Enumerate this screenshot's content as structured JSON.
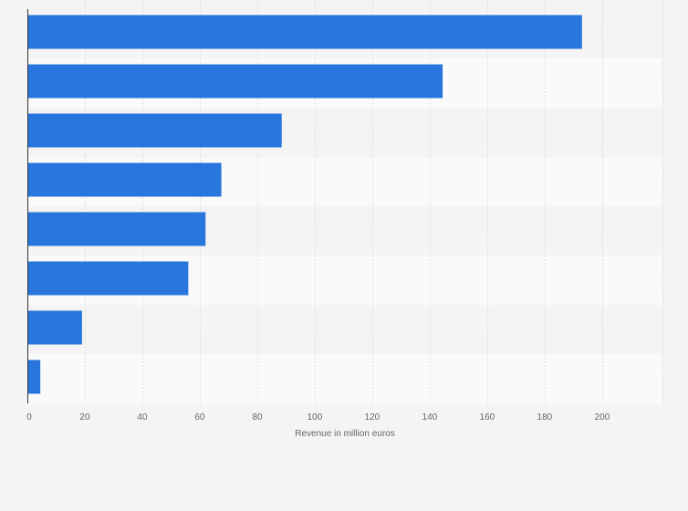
{
  "chart_data": {
    "type": "bar",
    "orientation": "horizontal",
    "categories": [
      "",
      "",
      "",
      "",
      "",
      "",
      "",
      ""
    ],
    "values": [
      193,
      144.5,
      88.5,
      67.5,
      62,
      56,
      19,
      4.5
    ],
    "title": "",
    "xlabel": "Revenue in million euros",
    "ylabel": "",
    "xlim": [
      0,
      221
    ],
    "xticks": [
      0,
      20,
      40,
      60,
      80,
      100,
      120,
      140,
      160,
      180,
      200
    ],
    "grid": true,
    "bar_color": "#2876dd",
    "band_colors": [
      "#f4f4f4",
      "#fafafa"
    ],
    "gridline_color": "#dedede",
    "axis_color": "#333333"
  }
}
